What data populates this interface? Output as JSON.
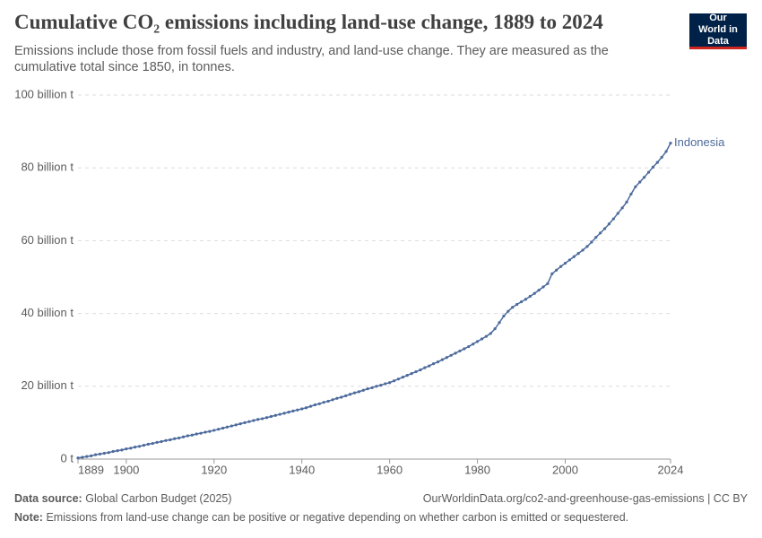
{
  "chart_data": {
    "type": "line",
    "title": "Cumulative CO₂ emissions including land-use change, 1889 to 2024",
    "subtitle": "Emissions include those from fossil fuels and industry, and land-use change. They are measured as the cumulative total since 1850, in tonnes.",
    "logo": "Our World in Data",
    "source_label": "Data source:",
    "source": "Global Carbon Budget (2025)",
    "url": "OurWorldinData.org/co2-and-greenhouse-gas-emissions | CC BY",
    "note_label": "Note:",
    "note": "Emissions from land-use change can be positive or negative depending on whether carbon is emitted or sequestered.",
    "x": [
      1889,
      1890,
      1891,
      1892,
      1893,
      1894,
      1895,
      1896,
      1897,
      1898,
      1899,
      1900,
      1901,
      1902,
      1903,
      1904,
      1905,
      1906,
      1907,
      1908,
      1909,
      1910,
      1911,
      1912,
      1913,
      1914,
      1915,
      1916,
      1917,
      1918,
      1919,
      1920,
      1921,
      1922,
      1923,
      1924,
      1925,
      1926,
      1927,
      1928,
      1929,
      1930,
      1931,
      1932,
      1933,
      1934,
      1935,
      1936,
      1937,
      1938,
      1939,
      1940,
      1941,
      1942,
      1943,
      1944,
      1945,
      1946,
      1947,
      1948,
      1949,
      1950,
      1951,
      1952,
      1953,
      1954,
      1955,
      1956,
      1957,
      1958,
      1959,
      1960,
      1961,
      1962,
      1963,
      1964,
      1965,
      1966,
      1967,
      1968,
      1969,
      1970,
      1971,
      1972,
      1973,
      1974,
      1975,
      1976,
      1977,
      1978,
      1979,
      1980,
      1981,
      1982,
      1983,
      1984,
      1985,
      1986,
      1987,
      1988,
      1989,
      1990,
      1991,
      1992,
      1993,
      1994,
      1995,
      1996,
      1997,
      1998,
      1999,
      2000,
      2001,
      2002,
      2003,
      2004,
      2005,
      2006,
      2007,
      2008,
      2009,
      2010,
      2011,
      2012,
      2013,
      2014,
      2015,
      2016,
      2017,
      2018,
      2019,
      2020,
      2021,
      2022,
      2023,
      2024
    ],
    "series": [
      {
        "name": "Indonesia",
        "color": "#4c6a9c",
        "values": [
          0.3,
          0.5,
          0.7,
          0.9,
          1.2,
          1.4,
          1.6,
          1.8,
          2.1,
          2.3,
          2.5,
          2.8,
          3.0,
          3.3,
          3.5,
          3.8,
          4.1,
          4.3,
          4.6,
          4.8,
          5.1,
          5.3,
          5.6,
          5.8,
          6.1,
          6.4,
          6.6,
          6.9,
          7.1,
          7.4,
          7.6,
          7.9,
          8.2,
          8.5,
          8.8,
          9.1,
          9.4,
          9.7,
          10.0,
          10.3,
          10.6,
          10.9,
          11.1,
          11.4,
          11.7,
          12.0,
          12.3,
          12.6,
          12.9,
          13.2,
          13.5,
          13.8,
          14.1,
          14.5,
          14.9,
          15.2,
          15.6,
          15.9,
          16.3,
          16.7,
          17.0,
          17.4,
          17.8,
          18.2,
          18.5,
          18.9,
          19.3,
          19.6,
          20.0,
          20.3,
          20.7,
          21.0,
          21.5,
          22.0,
          22.5,
          23.0,
          23.5,
          24.0,
          24.5,
          25.1,
          25.6,
          26.2,
          26.7,
          27.3,
          27.9,
          28.5,
          29.1,
          29.7,
          30.3,
          30.9,
          31.6,
          32.3,
          33.0,
          33.7,
          34.5,
          35.8,
          37.5,
          39.3,
          40.6,
          41.7,
          42.5,
          43.2,
          43.9,
          44.7,
          45.5,
          46.4,
          47.3,
          48.2,
          50.9,
          51.9,
          52.9,
          53.8,
          54.7,
          55.6,
          56.5,
          57.4,
          58.4,
          59.6,
          60.9,
          62.1,
          63.3,
          64.6,
          66.0,
          67.5,
          69.0,
          70.6,
          72.8,
          74.8,
          76.1,
          77.4,
          78.8,
          80.2,
          81.5,
          82.9,
          84.5,
          86.8
        ]
      }
    ],
    "xlim": [
      1889,
      2024
    ],
    "xticks": [
      1889,
      1900,
      1920,
      1940,
      1960,
      1980,
      2000,
      2024
    ],
    "ylim": [
      0,
      100
    ],
    "yticks": [
      {
        "value": 0,
        "label": "0 t"
      },
      {
        "value": 20,
        "label": "20 billion t"
      },
      {
        "value": 40,
        "label": "40 billion t"
      },
      {
        "value": 60,
        "label": "60 billion t"
      },
      {
        "value": 80,
        "label": "80 billion t"
      },
      {
        "value": 100,
        "label": "100 billion t"
      }
    ],
    "grid": true
  }
}
